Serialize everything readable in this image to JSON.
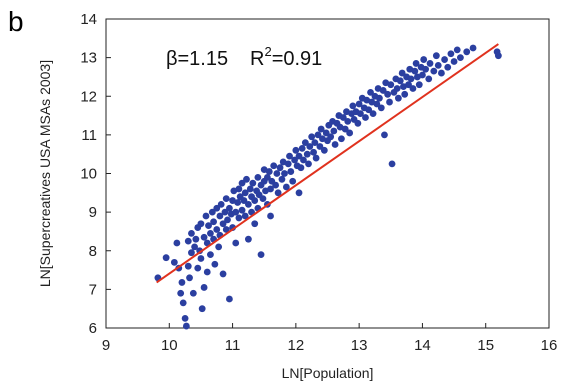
{
  "panel_label": "b",
  "chart_data": {
    "type": "scatter",
    "xlabel": "LN[Population]",
    "ylabel": "LN[Supercreatives USA MSAs 2003]",
    "xlim": [
      9,
      16
    ],
    "ylim": [
      6,
      14
    ],
    "xticks": [
      "9",
      "10",
      "11",
      "12",
      "13",
      "14",
      "15",
      "16"
    ],
    "yticks": [
      "6",
      "7",
      "8",
      "9",
      "10",
      "11",
      "12",
      "13",
      "14"
    ],
    "annotation": {
      "beta_text": "β=1.15",
      "r_base": "R",
      "r_sup": "2",
      "r_value": "=0.91"
    },
    "marker_color": "#2b3fa0",
    "fit_color": "#e0321e",
    "fit_line": {
      "x1": 9.8,
      "y1": 7.18,
      "x2": 15.2,
      "y2": 13.35
    },
    "points": [
      [
        9.82,
        7.3
      ],
      [
        9.95,
        7.82
      ],
      [
        10.08,
        7.7
      ],
      [
        10.12,
        8.2
      ],
      [
        10.15,
        7.55
      ],
      [
        10.18,
        6.9
      ],
      [
        10.2,
        7.18
      ],
      [
        10.22,
        6.65
      ],
      [
        10.25,
        6.25
      ],
      [
        10.27,
        6.05
      ],
      [
        10.3,
        7.6
      ],
      [
        10.3,
        8.25
      ],
      [
        10.32,
        7.3
      ],
      [
        10.35,
        7.95
      ],
      [
        10.35,
        8.45
      ],
      [
        10.38,
        6.9
      ],
      [
        10.4,
        8.1
      ],
      [
        10.42,
        8.3
      ],
      [
        10.45,
        7.55
      ],
      [
        10.45,
        8.6
      ],
      [
        10.48,
        8.0
      ],
      [
        10.5,
        7.8
      ],
      [
        10.5,
        8.7
      ],
      [
        10.52,
        6.5
      ],
      [
        10.55,
        7.05
      ],
      [
        10.55,
        8.35
      ],
      [
        10.58,
        8.9
      ],
      [
        10.6,
        8.2
      ],
      [
        10.6,
        7.45
      ],
      [
        10.62,
        8.65
      ],
      [
        10.65,
        8.45
      ],
      [
        10.65,
        7.9
      ],
      [
        10.68,
        9.0
      ],
      [
        10.7,
        8.3
      ],
      [
        10.7,
        8.75
      ],
      [
        10.72,
        7.65
      ],
      [
        10.75,
        8.55
      ],
      [
        10.75,
        9.1
      ],
      [
        10.78,
        8.1
      ],
      [
        10.8,
        8.9
      ],
      [
        10.8,
        8.4
      ],
      [
        10.82,
        9.2
      ],
      [
        10.85,
        8.7
      ],
      [
        10.85,
        7.4
      ],
      [
        10.88,
        9.0
      ],
      [
        10.9,
        8.55
      ],
      [
        10.9,
        9.35
      ],
      [
        10.92,
        8.8
      ],
      [
        10.95,
        9.1
      ],
      [
        10.95,
        6.75
      ],
      [
        10.98,
        8.95
      ],
      [
        11.0,
        9.3
      ],
      [
        11.0,
        8.6
      ],
      [
        11.02,
        9.55
      ],
      [
        11.05,
        9.0
      ],
      [
        11.05,
        8.2
      ],
      [
        11.08,
        9.25
      ],
      [
        11.1,
        9.6
      ],
      [
        11.1,
        8.85
      ],
      [
        11.12,
        9.4
      ],
      [
        11.15,
        9.05
      ],
      [
        11.15,
        9.75
      ],
      [
        11.18,
        9.3
      ],
      [
        11.2,
        8.9
      ],
      [
        11.2,
        9.5
      ],
      [
        11.22,
        9.85
      ],
      [
        11.25,
        9.2
      ],
      [
        11.25,
        8.3
      ],
      [
        11.28,
        9.6
      ],
      [
        11.3,
        9.0
      ],
      [
        11.3,
        9.4
      ],
      [
        11.32,
        9.75
      ],
      [
        11.35,
        9.3
      ],
      [
        11.35,
        8.7
      ],
      [
        11.38,
        9.55
      ],
      [
        11.4,
        9.9
      ],
      [
        11.4,
        9.1
      ],
      [
        11.42,
        9.45
      ],
      [
        11.45,
        9.7
      ],
      [
        11.45,
        7.9
      ],
      [
        11.48,
        9.35
      ],
      [
        11.5,
        9.8
      ],
      [
        11.5,
        10.1
      ],
      [
        11.52,
        9.55
      ],
      [
        11.55,
        9.9
      ],
      [
        11.55,
        9.2
      ],
      [
        11.58,
        10.05
      ],
      [
        11.6,
        9.6
      ],
      [
        11.6,
        8.9
      ],
      [
        11.62,
        9.8
      ],
      [
        11.65,
        10.2
      ],
      [
        11.68,
        9.7
      ],
      [
        11.7,
        10.0
      ],
      [
        11.72,
        9.5
      ],
      [
        11.75,
        10.15
      ],
      [
        11.78,
        9.85
      ],
      [
        11.8,
        10.3
      ],
      [
        11.82,
        10.0
      ],
      [
        11.85,
        9.65
      ],
      [
        11.88,
        10.25
      ],
      [
        11.9,
        10.45
      ],
      [
        11.92,
        10.05
      ],
      [
        11.95,
        9.8
      ],
      [
        11.98,
        10.35
      ],
      [
        12.0,
        10.6
      ],
      [
        12.02,
        10.2
      ],
      [
        12.05,
        9.5
      ],
      [
        12.05,
        10.45
      ],
      [
        12.08,
        10.15
      ],
      [
        12.1,
        10.65
      ],
      [
        12.12,
        10.35
      ],
      [
        12.15,
        10.8
      ],
      [
        12.18,
        10.5
      ],
      [
        12.2,
        10.25
      ],
      [
        12.22,
        10.7
      ],
      [
        12.25,
        10.95
      ],
      [
        12.28,
        10.55
      ],
      [
        12.3,
        10.8
      ],
      [
        12.32,
        10.4
      ],
      [
        12.35,
        11.0
      ],
      [
        12.38,
        10.7
      ],
      [
        12.4,
        11.15
      ],
      [
        12.42,
        10.9
      ],
      [
        12.45,
        10.6
      ],
      [
        12.48,
        11.05
      ],
      [
        12.5,
        10.85
      ],
      [
        12.52,
        11.25
      ],
      [
        12.55,
        10.95
      ],
      [
        12.58,
        11.35
      ],
      [
        12.6,
        11.1
      ],
      [
        12.62,
        10.75
      ],
      [
        12.65,
        11.3
      ],
      [
        12.68,
        11.5
      ],
      [
        12.7,
        11.2
      ],
      [
        12.72,
        10.9
      ],
      [
        12.75,
        11.45
      ],
      [
        12.78,
        11.15
      ],
      [
        12.8,
        11.6
      ],
      [
        12.82,
        11.35
      ],
      [
        12.85,
        11.05
      ],
      [
        12.88,
        11.55
      ],
      [
        12.9,
        11.75
      ],
      [
        12.92,
        11.4
      ],
      [
        12.95,
        11.6
      ],
      [
        12.98,
        11.3
      ],
      [
        13.0,
        11.8
      ],
      [
        13.02,
        11.55
      ],
      [
        13.05,
        11.95
      ],
      [
        13.08,
        11.7
      ],
      [
        13.1,
        11.45
      ],
      [
        13.12,
        11.9
      ],
      [
        13.15,
        11.65
      ],
      [
        13.18,
        12.1
      ],
      [
        13.2,
        11.85
      ],
      [
        13.22,
        11.55
      ],
      [
        13.25,
        12.0
      ],
      [
        13.28,
        11.8
      ],
      [
        13.3,
        12.2
      ],
      [
        13.32,
        11.95
      ],
      [
        13.35,
        11.7
      ],
      [
        13.38,
        12.15
      ],
      [
        13.4,
        11.0
      ],
      [
        13.42,
        12.35
      ],
      [
        13.45,
        12.05
      ],
      [
        13.48,
        11.85
      ],
      [
        13.5,
        12.3
      ],
      [
        13.52,
        10.25
      ],
      [
        13.55,
        12.1
      ],
      [
        13.58,
        12.45
      ],
      [
        13.6,
        12.2
      ],
      [
        13.62,
        11.95
      ],
      [
        13.65,
        12.4
      ],
      [
        13.68,
        12.6
      ],
      [
        13.7,
        12.25
      ],
      [
        13.72,
        12.05
      ],
      [
        13.75,
        12.5
      ],
      [
        13.78,
        12.3
      ],
      [
        13.8,
        12.7
      ],
      [
        13.82,
        12.45
      ],
      [
        13.85,
        12.2
      ],
      [
        13.88,
        12.65
      ],
      [
        13.9,
        12.85
      ],
      [
        13.92,
        12.5
      ],
      [
        13.95,
        12.3
      ],
      [
        13.98,
        12.75
      ],
      [
        14.0,
        12.55
      ],
      [
        14.02,
        12.95
      ],
      [
        14.05,
        12.7
      ],
      [
        14.1,
        12.45
      ],
      [
        14.12,
        12.85
      ],
      [
        14.18,
        12.65
      ],
      [
        14.22,
        13.05
      ],
      [
        14.25,
        12.8
      ],
      [
        14.3,
        12.6
      ],
      [
        14.35,
        12.95
      ],
      [
        14.4,
        12.75
      ],
      [
        14.45,
        13.1
      ],
      [
        14.5,
        12.9
      ],
      [
        14.55,
        13.2
      ],
      [
        14.6,
        13.0
      ],
      [
        14.7,
        13.15
      ],
      [
        14.8,
        13.25
      ],
      [
        15.18,
        13.15
      ],
      [
        15.2,
        13.05
      ]
    ]
  }
}
